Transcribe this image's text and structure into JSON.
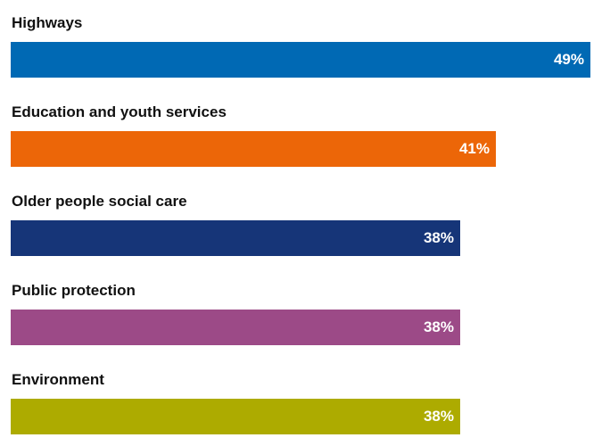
{
  "chart_data": {
    "type": "bar",
    "orientation": "horizontal",
    "categories": [
      "Highways",
      "Education and youth services",
      "Older people social care",
      "Public protection",
      "Environment"
    ],
    "values": [
      49,
      41,
      38,
      38,
      38
    ],
    "value_labels": [
      "49%",
      "41%",
      "38%",
      "38%",
      "38%"
    ],
    "colors": [
      "#0069b4",
      "#ec6608",
      "#163578",
      "#9c4a87",
      "#adab00"
    ],
    "unit": "%",
    "title": "",
    "xlabel": "",
    "ylabel": "",
    "grid": false,
    "legend": "none"
  }
}
